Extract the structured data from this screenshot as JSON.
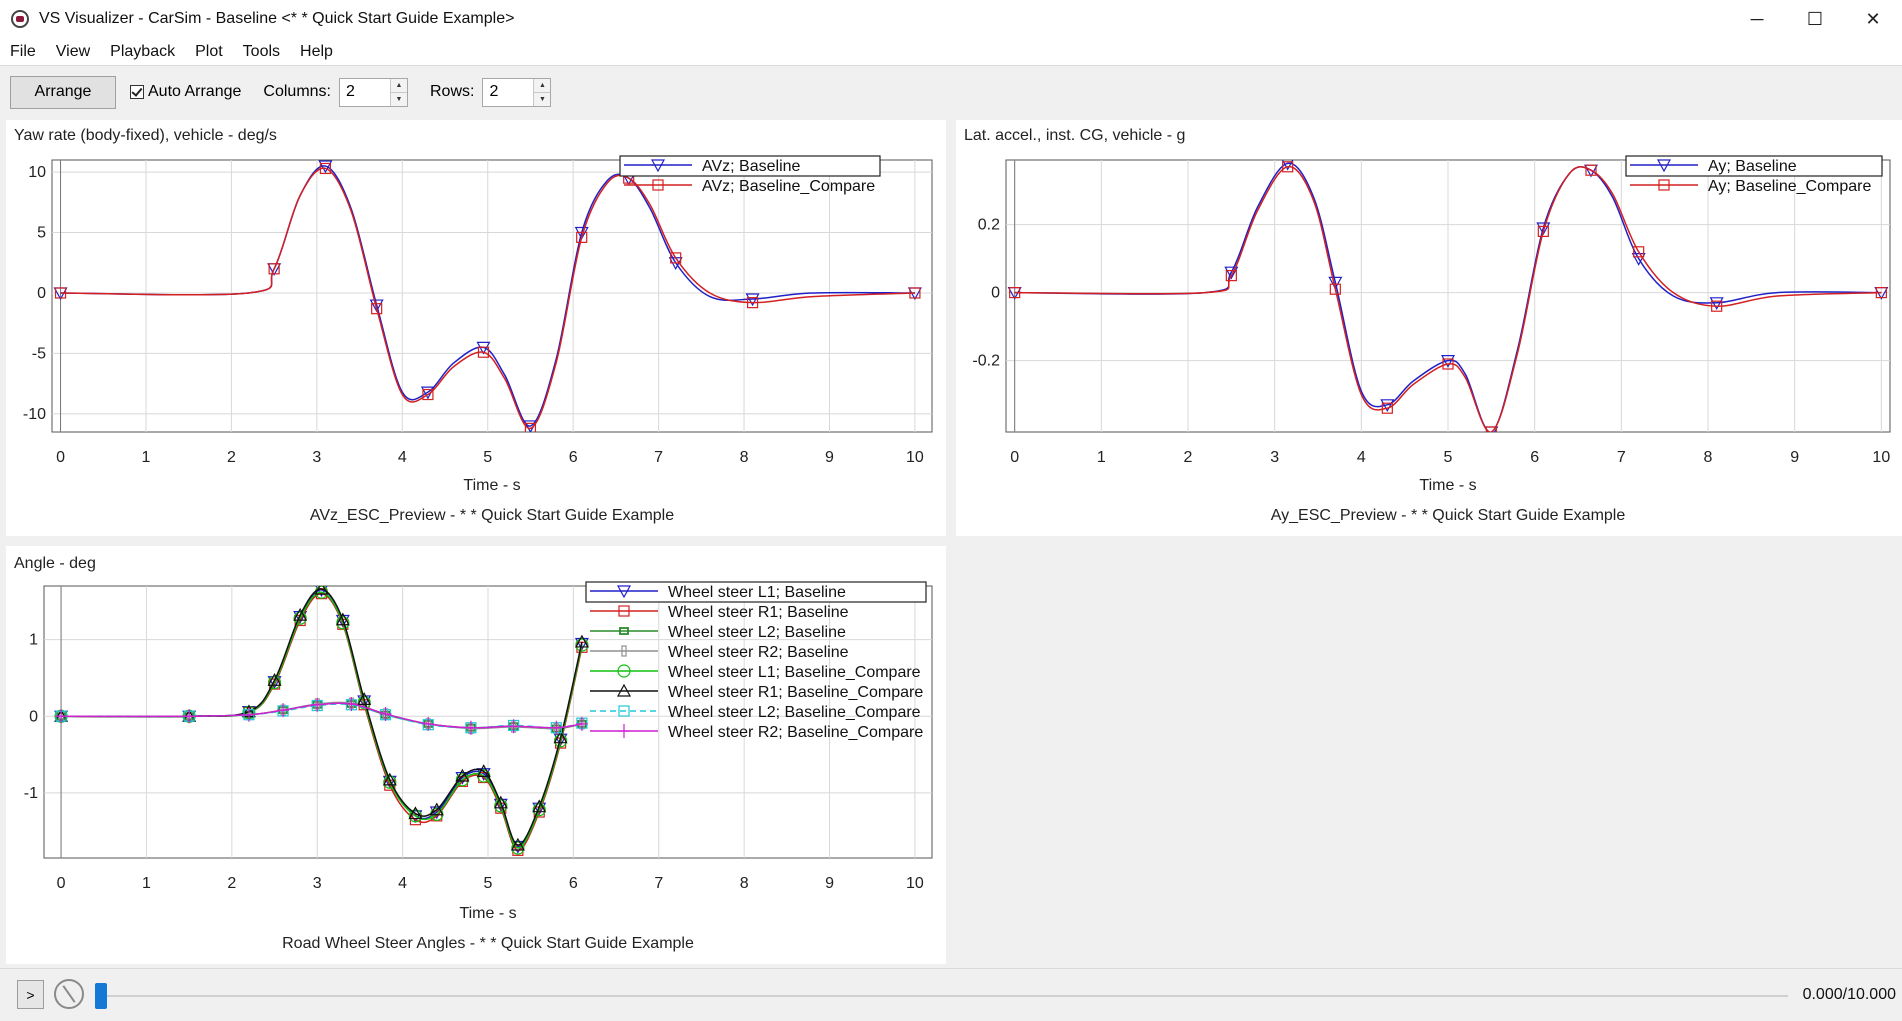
{
  "window": {
    "title": "VS Visualizer - CarSim - Baseline <* * Quick Start Guide Example>",
    "minimize": "─",
    "maximize": "☐",
    "close": "✕"
  },
  "menu": [
    "File",
    "View",
    "Playback",
    "Plot",
    "Tools",
    "Help"
  ],
  "toolbar": {
    "arrange_label": "Arrange",
    "auto_arrange_label": "Auto Arrange",
    "auto_arrange_checked": true,
    "columns_label": "Columns:",
    "columns_value": "2",
    "rows_label": "Rows:",
    "rows_value": "2"
  },
  "plots": [
    {
      "ylabel": "Yaw rate (body-fixed), vehicle - deg/s",
      "xlabel": "Time - s",
      "caption": "AVz_ESC_Preview - * * Quick Start Guide Example",
      "legend": [
        "AVz; Baseline",
        "AVz; Baseline_Compare"
      ]
    },
    {
      "ylabel": "Lat. accel., inst. CG, vehicle - g",
      "xlabel": "Time - s",
      "caption": "Ay_ESC_Preview - * * Quick Start Guide Example",
      "legend": [
        "Ay; Baseline",
        "Ay; Baseline_Compare"
      ]
    },
    {
      "ylabel": "Angle - deg",
      "xlabel": "Time - s",
      "caption": "Road Wheel Steer Angles - * * Quick Start Guide Example",
      "legend": [
        "Wheel steer L1; Baseline",
        "Wheel steer R1; Baseline",
        "Wheel steer L2; Baseline",
        "Wheel steer R2; Baseline",
        "Wheel steer L1; Baseline_Compare",
        "Wheel steer R1; Baseline_Compare",
        "Wheel steer L2; Baseline_Compare",
        "Wheel steer R2; Baseline_Compare"
      ]
    }
  ],
  "chart_data": [
    {
      "type": "line",
      "ylabel": "Yaw rate (body-fixed), vehicle - deg/s",
      "xlabel": "Time - s",
      "xlim": [
        -0.1,
        10.2
      ],
      "ylim": [
        -11.5,
        11
      ],
      "xticks": [
        0,
        1,
        2,
        3,
        4,
        5,
        6,
        7,
        8,
        9,
        10
      ],
      "yticks": [
        10,
        5,
        0,
        -5,
        -10
      ],
      "grid": true,
      "legend_position": "top-right",
      "series": [
        {
          "name": "AVz; Baseline",
          "color": "#2020c8",
          "marker": "triangle-down",
          "x": [
            0,
            2.2,
            2.5,
            2.8,
            3.1,
            3.4,
            3.7,
            4.0,
            4.3,
            4.6,
            4.95,
            5.2,
            5.5,
            5.8,
            6.1,
            6.4,
            6.65,
            6.9,
            7.2,
            7.6,
            8.1,
            8.8,
            10
          ],
          "y": [
            0,
            0,
            2,
            8,
            10.5,
            7,
            -1,
            -8.2,
            -8.2,
            -5.8,
            -4.5,
            -6.8,
            -11,
            -5.5,
            5,
            9.3,
            9.5,
            7,
            2.5,
            -0.3,
            -0.5,
            0,
            0
          ]
        },
        {
          "name": "AVz; Baseline_Compare",
          "color": "#d42020",
          "marker": "square",
          "x": [
            0,
            2.2,
            2.5,
            2.8,
            3.1,
            3.4,
            3.7,
            4.0,
            4.3,
            4.6,
            4.95,
            5.2,
            5.5,
            5.8,
            6.1,
            6.4,
            6.65,
            6.9,
            7.2,
            7.6,
            8.1,
            8.8,
            10
          ],
          "y": [
            0,
            0,
            2,
            8,
            10.3,
            6.8,
            -1.3,
            -8.4,
            -8.4,
            -6.1,
            -4.9,
            -7.1,
            -11.2,
            -5.8,
            4.6,
            9.1,
            9.5,
            7.3,
            2.9,
            0,
            -0.8,
            -0.3,
            0
          ]
        }
      ]
    },
    {
      "type": "line",
      "ylabel": "Lat. accel., inst. CG, vehicle - g",
      "xlabel": "Time - s",
      "xlim": [
        -0.1,
        10.1
      ],
      "ylim": [
        -0.41,
        0.39
      ],
      "xticks": [
        0,
        1,
        2,
        3,
        4,
        5,
        6,
        7,
        8,
        9,
        10
      ],
      "yticks": [
        0.2,
        0,
        -0.2
      ],
      "grid": true,
      "legend_position": "top-right",
      "series": [
        {
          "name": "Ay; Baseline",
          "color": "#2020c8",
          "marker": "triangle-down",
          "x": [
            0,
            2.2,
            2.5,
            2.8,
            3.15,
            3.45,
            3.7,
            4.0,
            4.3,
            4.6,
            5.0,
            5.2,
            5.5,
            5.8,
            6.1,
            6.4,
            6.65,
            6.9,
            7.2,
            7.6,
            8.1,
            8.8,
            10
          ],
          "y": [
            0,
            0,
            0.06,
            0.25,
            0.38,
            0.28,
            0.03,
            -0.29,
            -0.33,
            -0.26,
            -0.2,
            -0.24,
            -0.41,
            -0.17,
            0.19,
            0.35,
            0.36,
            0.28,
            0.1,
            -0.01,
            -0.03,
            0,
            0
          ]
        },
        {
          "name": "Ay; Baseline_Compare",
          "color": "#d42020",
          "marker": "square",
          "x": [
            0,
            2.2,
            2.5,
            2.8,
            3.15,
            3.45,
            3.7,
            4.0,
            4.3,
            4.6,
            5.0,
            5.2,
            5.5,
            5.8,
            6.1,
            6.4,
            6.65,
            6.9,
            7.2,
            7.6,
            8.1,
            8.8,
            10
          ],
          "y": [
            0,
            0,
            0.05,
            0.24,
            0.37,
            0.27,
            0.01,
            -0.3,
            -0.34,
            -0.27,
            -0.21,
            -0.25,
            -0.41,
            -0.18,
            0.18,
            0.35,
            0.36,
            0.29,
            0.12,
            0,
            -0.04,
            -0.01,
            0
          ]
        }
      ]
    },
    {
      "type": "line",
      "ylabel": "Angle - deg",
      "xlabel": "Time - s",
      "xlim": [
        -0.2,
        10.2
      ],
      "ylim": [
        -1.85,
        1.7
      ],
      "xticks": [
        0,
        1,
        2,
        3,
        4,
        5,
        6,
        7,
        8,
        9,
        10
      ],
      "yticks": [
        1,
        0,
        -1
      ],
      "grid": true,
      "legend_position": "top-right",
      "series": [
        {
          "name": "Wheel steer L1; Baseline",
          "color": "#2020c8",
          "marker": "triangle-down",
          "x": [
            0,
            1.5,
            2.2,
            2.5,
            2.8,
            3.05,
            3.3,
            3.55,
            3.85,
            4.15,
            4.4,
            4.7,
            4.95,
            5.15,
            5.35,
            5.6,
            5.85,
            6.1
          ],
          "y": [
            0,
            0,
            0.06,
            0.45,
            1.3,
            1.65,
            1.25,
            0.2,
            -0.85,
            -1.3,
            -1.25,
            -0.8,
            -0.75,
            -1.15,
            -1.7,
            -1.2,
            -0.3,
            0.95
          ]
        },
        {
          "name": "Wheel steer R1; Baseline",
          "color": "#d42020",
          "marker": "square",
          "x": [
            0,
            1.5,
            2.2,
            2.5,
            2.8,
            3.05,
            3.3,
            3.55,
            3.85,
            4.15,
            4.4,
            4.7,
            4.95,
            5.15,
            5.35,
            5.6,
            5.85,
            6.1
          ],
          "y": [
            0,
            0,
            0.05,
            0.42,
            1.25,
            1.6,
            1.2,
            0.15,
            -0.9,
            -1.35,
            -1.3,
            -0.85,
            -0.8,
            -1.2,
            -1.75,
            -1.25,
            -0.35,
            0.9
          ]
        },
        {
          "name": "Wheel steer L2; Baseline",
          "color": "#2a8a2a",
          "marker": "square-small",
          "x": [
            0,
            1.5,
            2.2,
            2.6,
            3.0,
            3.4,
            3.8,
            4.3,
            4.8,
            5.3,
            5.8,
            6.1
          ],
          "y": [
            0,
            0,
            0.02,
            0.08,
            0.15,
            0.16,
            0.02,
            -0.1,
            -0.15,
            -0.13,
            -0.16,
            -0.1
          ]
        },
        {
          "name": "Wheel steer R2; Baseline",
          "color": "#909090",
          "marker": "rect-small",
          "x": [
            0,
            1.5,
            2.2,
            2.6,
            3.0,
            3.4,
            3.8,
            4.3,
            4.8,
            5.3,
            5.8,
            6.1
          ],
          "y": [
            0,
            0,
            0.02,
            0.08,
            0.16,
            0.17,
            0.03,
            -0.1,
            -0.16,
            -0.14,
            -0.16,
            -0.1
          ]
        },
        {
          "name": "Wheel steer L1; Baseline_Compare",
          "color": "#10c010",
          "marker": "circle",
          "x": [
            0,
            1.5,
            2.2,
            2.5,
            2.8,
            3.05,
            3.3,
            3.55,
            3.85,
            4.15,
            4.4,
            4.7,
            4.95,
            5.15,
            5.35,
            5.6,
            5.85,
            6.1
          ],
          "y": [
            0,
            0,
            0.05,
            0.44,
            1.28,
            1.62,
            1.22,
            0.18,
            -0.86,
            -1.3,
            -1.28,
            -0.83,
            -0.78,
            -1.17,
            -1.72,
            -1.22,
            -0.32,
            0.93
          ]
        },
        {
          "name": "Wheel steer R1; Baseline_Compare",
          "color": "#111111",
          "marker": "triangle-up",
          "x": [
            0,
            1.5,
            2.2,
            2.5,
            2.8,
            3.05,
            3.3,
            3.55,
            3.85,
            4.15,
            4.4,
            4.7,
            4.95,
            5.15,
            5.35,
            5.6,
            5.85,
            6.1
          ],
          "y": [
            0,
            0,
            0.06,
            0.47,
            1.32,
            1.66,
            1.26,
            0.22,
            -0.83,
            -1.27,
            -1.22,
            -0.78,
            -0.72,
            -1.13,
            -1.68,
            -1.18,
            -0.28,
            0.97
          ]
        },
        {
          "name": "Wheel steer L2; Baseline_Compare",
          "color": "#20c8d8",
          "marker": "square-dashed",
          "x": [
            0,
            1.5,
            2.2,
            2.6,
            3.0,
            3.4,
            3.8,
            4.3,
            4.8,
            5.3,
            5.8,
            6.1
          ],
          "y": [
            0,
            0,
            0.02,
            0.07,
            0.14,
            0.15,
            0.02,
            -0.11,
            -0.15,
            -0.12,
            -0.15,
            -0.09
          ]
        },
        {
          "name": "Wheel steer R2; Baseline_Compare",
          "color": "#d020d0",
          "marker": "plus",
          "x": [
            0,
            1.5,
            2.2,
            2.6,
            3.0,
            3.4,
            3.8,
            4.3,
            4.8,
            5.3,
            5.8,
            6.1
          ],
          "y": [
            0,
            0,
            0.02,
            0.08,
            0.15,
            0.16,
            0.03,
            -0.1,
            -0.15,
            -0.13,
            -0.15,
            -0.1
          ]
        }
      ]
    }
  ],
  "status": {
    "play_label": ">",
    "time_readout": "0.000/10.000",
    "playback_position": 0.0
  }
}
